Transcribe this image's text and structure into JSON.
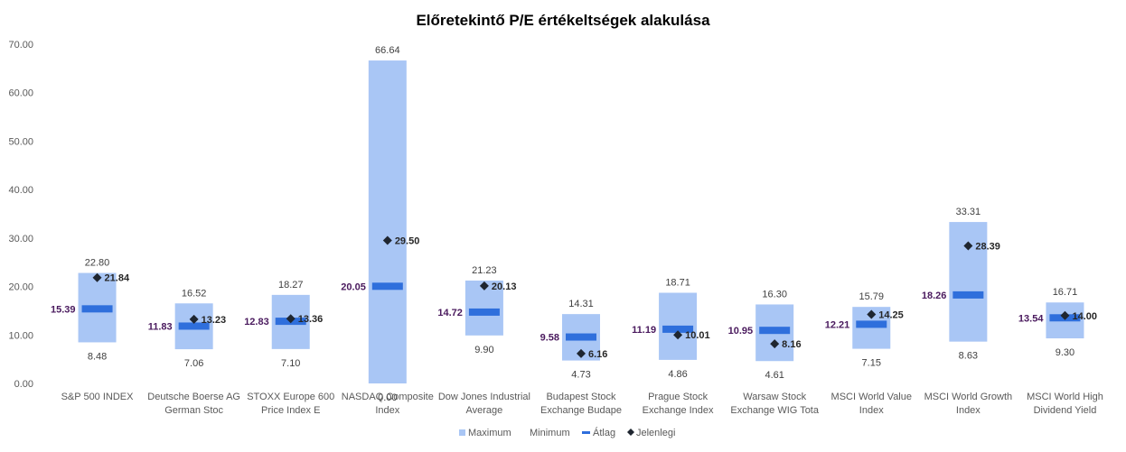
{
  "chart_data": {
    "type": "bar",
    "title": "Előretekintő P/E értékeltségek alakulása",
    "xlabel": "",
    "ylabel": "",
    "ylim": [
      0,
      70
    ],
    "yticks": [
      "0.00",
      "10.00",
      "20.00",
      "30.00",
      "40.00",
      "50.00",
      "60.00",
      "70.00"
    ],
    "grid": false,
    "legend_position": "bottom",
    "legend": [
      "Maximum",
      "Minimum",
      "Átlag",
      "Jelenlegi"
    ],
    "colors": {
      "range": "#a9c6f5",
      "average": "#2f6fdc",
      "current": "#1f2630",
      "avg_label": "#4a1a5e"
    },
    "categories": [
      [
        "S&P 500 INDEX"
      ],
      [
        "Deutsche Boerse AG",
        "German Stoc"
      ],
      [
        "STOXX Europe 600",
        "Price Index E"
      ],
      [
        "NASDAQ Composite",
        "Index"
      ],
      [
        "Dow Jones Industrial",
        "Average"
      ],
      [
        "Budapest Stock",
        "Exchange Budape"
      ],
      [
        "Prague Stock",
        "Exchange Index"
      ],
      [
        "Warsaw Stock",
        "Exchange WIG Tota"
      ],
      [
        "MSCI World Value",
        "Index"
      ],
      [
        "MSCI World Growth",
        "Index"
      ],
      [
        "MSCI World High",
        "Dividend Yield"
      ]
    ],
    "series": [
      {
        "name": "Maximum",
        "values": [
          22.8,
          16.52,
          18.27,
          66.64,
          21.23,
          14.31,
          18.71,
          16.3,
          15.79,
          33.31,
          16.71
        ],
        "labels": [
          "22.80",
          "16.52",
          "18.27",
          "66.64",
          "21.23",
          "14.31",
          "18.71",
          "16.30",
          "15.79",
          "33.31",
          "16.71"
        ]
      },
      {
        "name": "Minimum",
        "values": [
          8.48,
          7.06,
          7.1,
          0.0,
          9.9,
          4.73,
          4.86,
          4.61,
          7.15,
          8.63,
          9.3
        ],
        "labels": [
          "8.48",
          "7.06",
          "7.10",
          "0.00",
          "9.90",
          "4.73",
          "4.86",
          "4.61",
          "7.15",
          "8.63",
          "9.30"
        ]
      },
      {
        "name": "Átlag",
        "values": [
          15.39,
          11.83,
          12.83,
          20.05,
          14.72,
          9.58,
          11.19,
          10.95,
          12.21,
          18.26,
          13.54
        ],
        "labels": [
          "15.39",
          "11.83",
          "12.83",
          "20.05",
          "14.72",
          "9.58",
          "11.19",
          "10.95",
          "12.21",
          "18.26",
          "13.54"
        ]
      },
      {
        "name": "Jelenlegi",
        "values": [
          21.84,
          13.23,
          13.36,
          29.5,
          20.13,
          6.16,
          10.01,
          8.16,
          14.25,
          28.39,
          14.0
        ],
        "labels": [
          "21.84",
          "13.23",
          "13.36",
          "29.50",
          "20.13",
          "6.16",
          "10.01",
          "8.16",
          "14.25",
          "28.39",
          "14.00"
        ]
      }
    ]
  }
}
